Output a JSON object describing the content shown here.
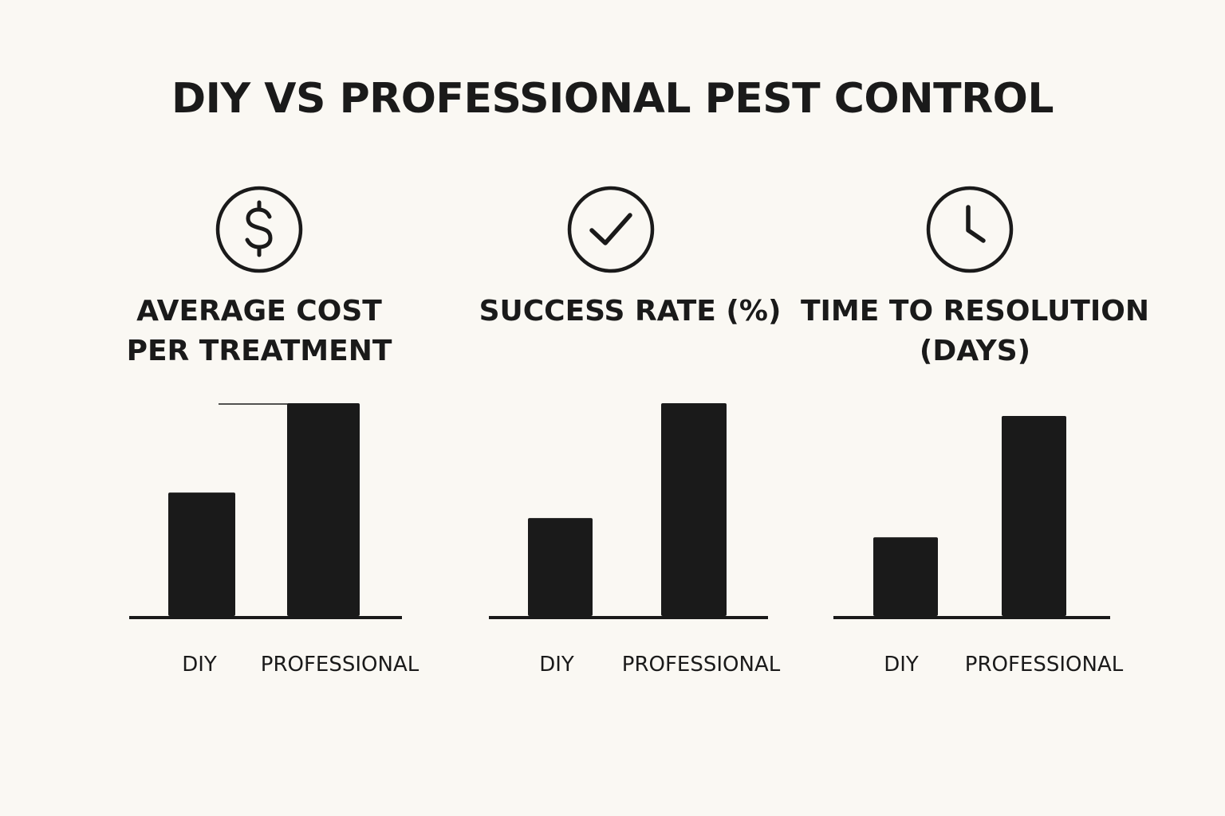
{
  "title": "DIY VS PROFESSIONAL PEST CONTROL",
  "colors": {
    "background": "#faf8f3",
    "ink": "#1a1a1a"
  },
  "chart_data": [
    {
      "type": "bar",
      "title": "AVERAGE COST\nPER TREATMENT",
      "icon": "dollar-circle-icon",
      "categories": [
        "DIY",
        "PROFESSIONAL"
      ],
      "values": [
        58,
        100
      ],
      "ylim": [
        0,
        100
      ],
      "grid": false
    },
    {
      "type": "bar",
      "title": "SUCCESS RATE (%)",
      "icon": "checkmark-circle-icon",
      "categories": [
        "DIY",
        "PROFESSIONAL"
      ],
      "values": [
        46,
        100
      ],
      "ylim": [
        0,
        100
      ],
      "grid": false
    },
    {
      "type": "bar",
      "title": "TIME TO RESOLUTION\n(DAYS)",
      "icon": "clock-icon",
      "categories": [
        "DIY",
        "PROFESSIONAL"
      ],
      "values": [
        37,
        94
      ],
      "ylim": [
        0,
        100
      ],
      "grid": false
    }
  ]
}
